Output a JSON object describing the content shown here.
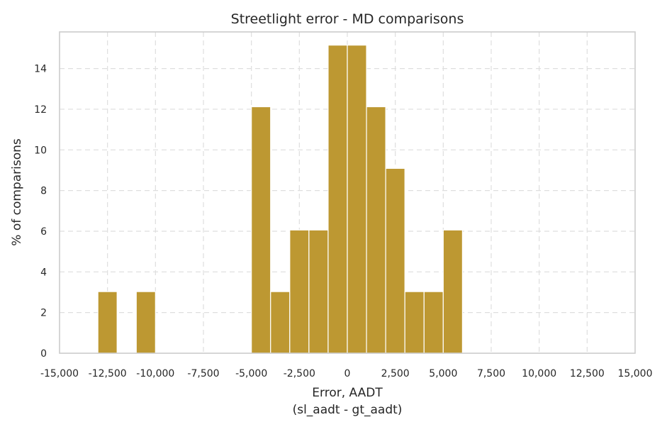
{
  "chart_data": {
    "type": "bar",
    "title": "Streetlight error - MD comparisons",
    "xlabel_line1": "Error, AADT",
    "xlabel_line2": "(sl_aadt - gt_aadt)",
    "ylabel": "% of comparisons",
    "xlim": [
      -15000,
      15000
    ],
    "ylim": [
      0,
      15.8
    ],
    "bin_width": 1000,
    "bar_color": "#bd9832",
    "grid": true,
    "x_ticks": [
      -15000,
      -12500,
      -10000,
      -7500,
      -5000,
      -2500,
      0,
      2500,
      5000,
      7500,
      10000,
      12500,
      15000
    ],
    "x_tick_labels": [
      "-15,000",
      "-12,500",
      "-10,000",
      "-7,500",
      "-5,000",
      "-2,500",
      "0",
      "2,500",
      "5,000",
      "7,500",
      "10,000",
      "12,500",
      "15,000"
    ],
    "y_ticks": [
      0,
      2,
      4,
      6,
      8,
      10,
      12,
      14
    ],
    "y_tick_labels": [
      "0",
      "2",
      "4",
      "6",
      "8",
      "10",
      "12",
      "14"
    ],
    "bins": [
      {
        "x_start": -13000,
        "x_end": -12000,
        "value": 3.03
      },
      {
        "x_start": -11000,
        "x_end": -10000,
        "value": 3.03
      },
      {
        "x_start": -5000,
        "x_end": -4000,
        "value": 12.12
      },
      {
        "x_start": -4000,
        "x_end": -3000,
        "value": 3.03
      },
      {
        "x_start": -3000,
        "x_end": -2000,
        "value": 6.06
      },
      {
        "x_start": -2000,
        "x_end": -1000,
        "value": 6.06
      },
      {
        "x_start": -1000,
        "x_end": 0,
        "value": 15.15
      },
      {
        "x_start": 0,
        "x_end": 1000,
        "value": 15.15
      },
      {
        "x_start": 1000,
        "x_end": 2000,
        "value": 12.12
      },
      {
        "x_start": 2000,
        "x_end": 3000,
        "value": 9.09
      },
      {
        "x_start": 3000,
        "x_end": 4000,
        "value": 3.03
      },
      {
        "x_start": 4000,
        "x_end": 5000,
        "value": 3.03
      },
      {
        "x_start": 5000,
        "x_end": 6000,
        "value": 6.06
      }
    ]
  }
}
